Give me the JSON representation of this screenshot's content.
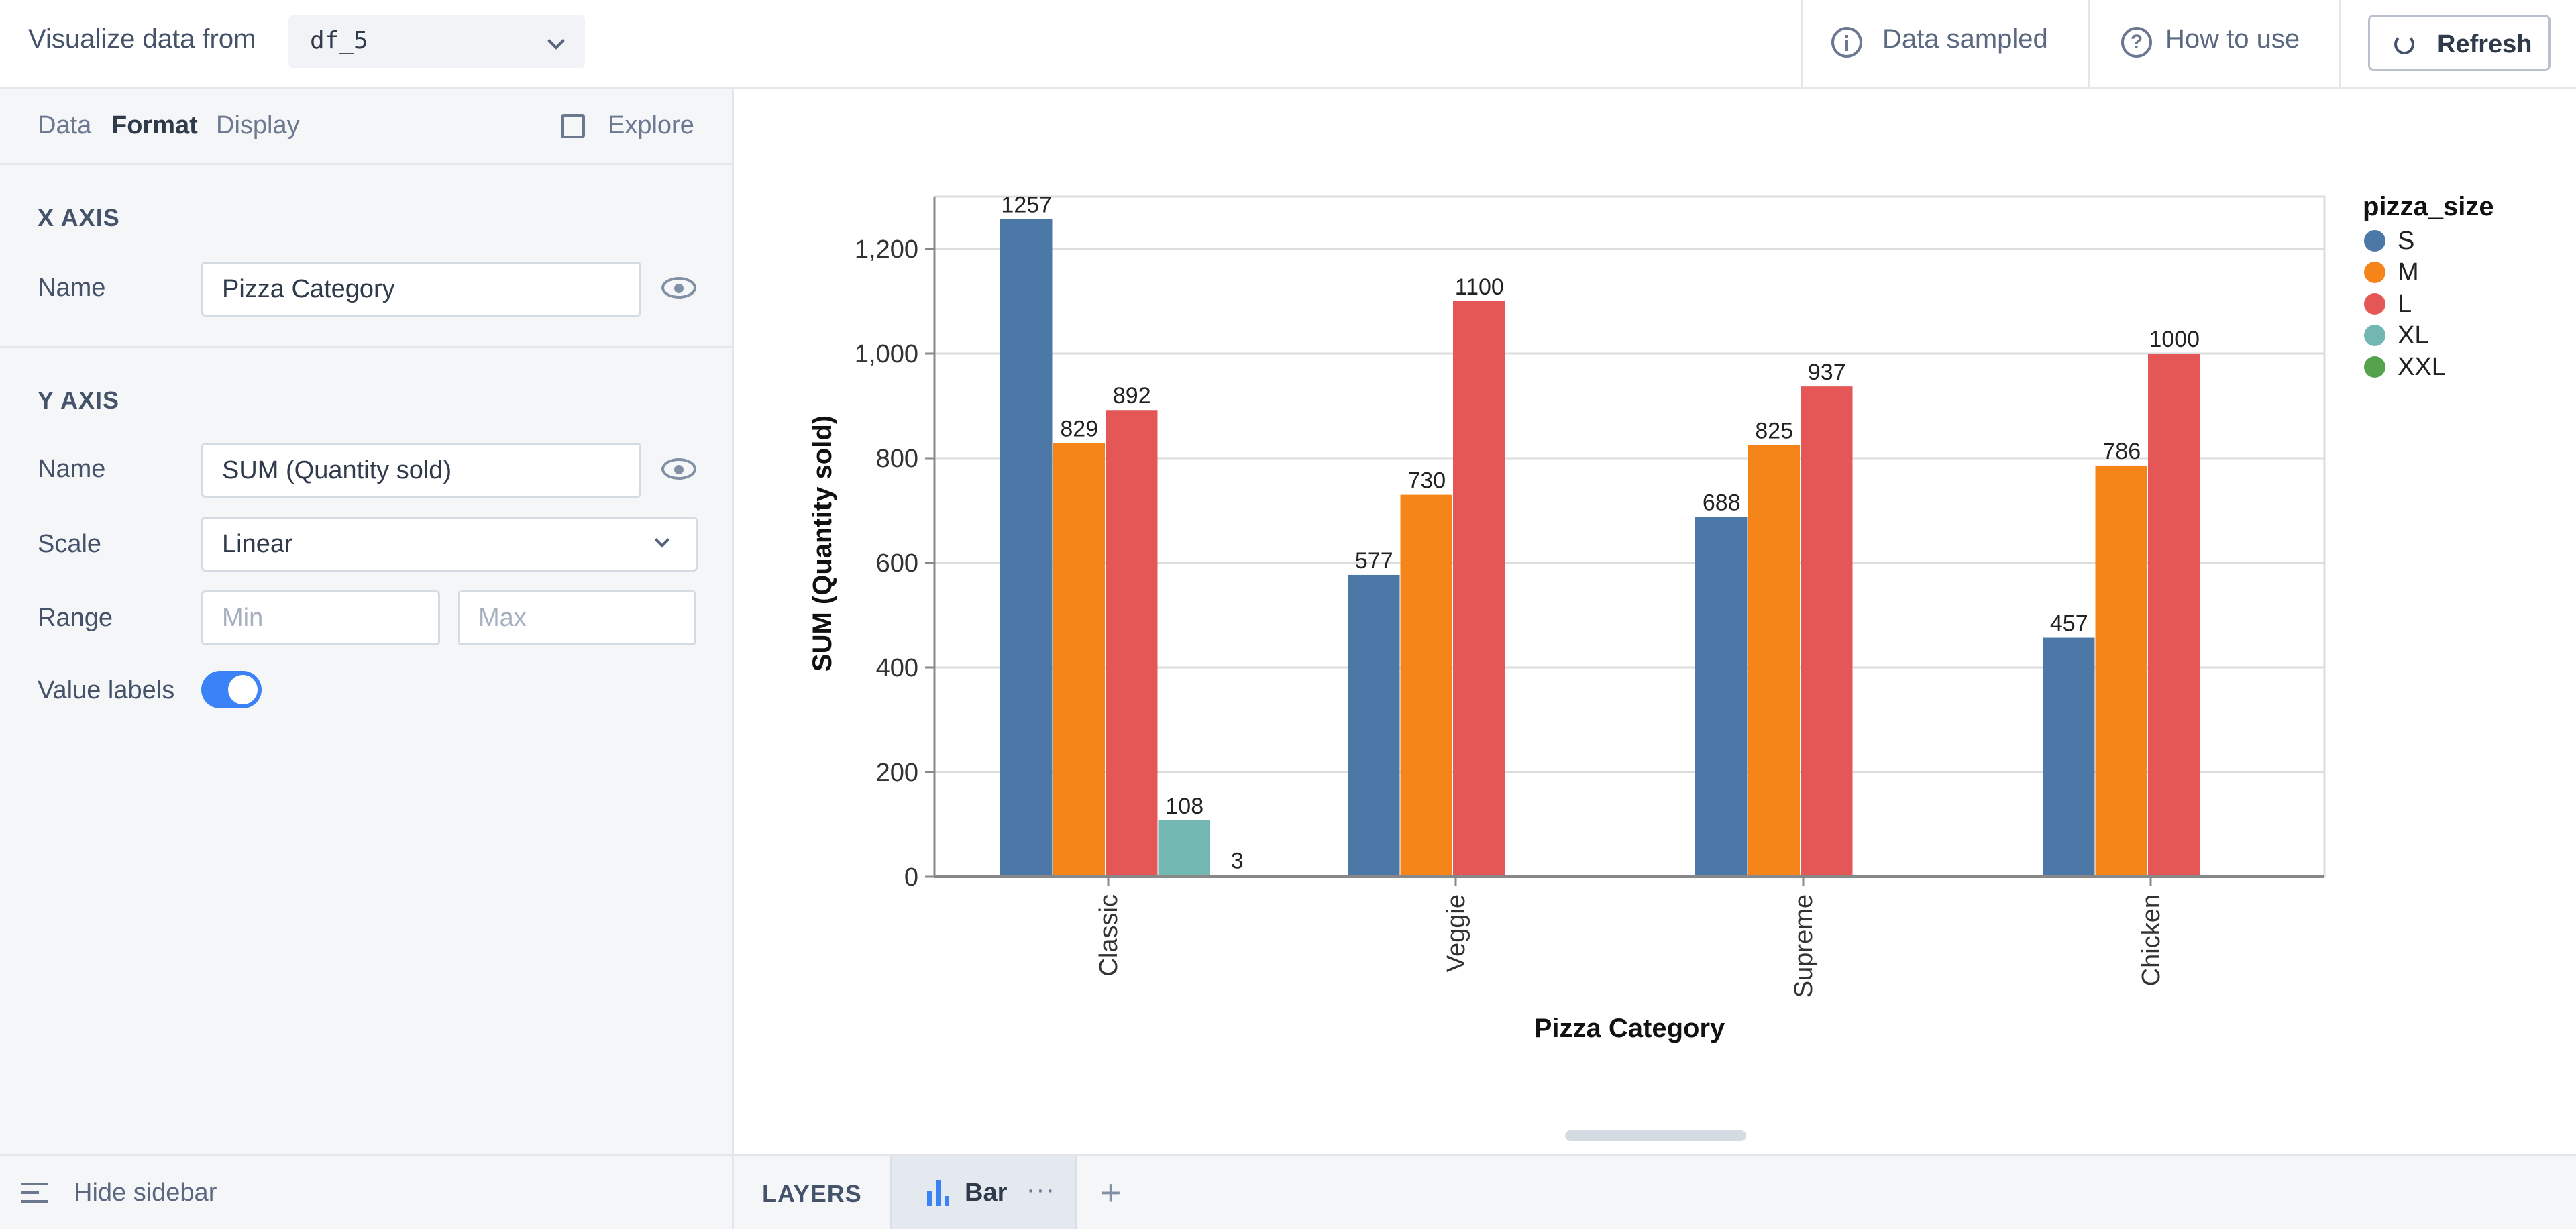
{
  "header": {
    "visualize_label": "Visualize data from",
    "dataframe": "df_5",
    "data_sampled": "Data sampled",
    "how_to_use": "How to use",
    "refresh_label": "Refresh"
  },
  "sidebar": {
    "tabs": [
      "Data",
      "Format",
      "Display"
    ],
    "active_tab": "Format",
    "explore_label": "Explore",
    "x_axis": {
      "section_title": "X AXIS",
      "name_label": "Name",
      "name_value": "Pizza Category"
    },
    "y_axis": {
      "section_title": "Y AXIS",
      "name_label": "Name",
      "name_value": "SUM (Quantity sold)",
      "scale_label": "Scale",
      "scale_value": "Linear",
      "range_label": "Range",
      "range_min_placeholder": "Min",
      "range_max_placeholder": "Max",
      "value_labels_label": "Value labels",
      "value_labels_on": true
    },
    "hide_sidebar_label": "Hide sidebar"
  },
  "layers": {
    "label": "LAYERS",
    "active_layer": "Bar",
    "more": "···",
    "add": "+"
  },
  "chart_data": {
    "type": "bar",
    "xlabel": "Pizza Category",
    "ylabel": "SUM (Quantity sold)",
    "ylim": [
      0,
      1300
    ],
    "yticks": [
      0,
      200,
      400,
      600,
      800,
      1000,
      1200
    ],
    "ytick_labels": [
      "0",
      "200",
      "400",
      "600",
      "800",
      "1,000",
      "1,200"
    ],
    "grid": true,
    "legend_title": "pizza_size",
    "legend_position": "right",
    "categories": [
      "Classic",
      "Veggie",
      "Supreme",
      "Chicken"
    ],
    "series": [
      {
        "name": "S",
        "color": "#4c78a8",
        "values": [
          1257,
          577,
          688,
          457
        ]
      },
      {
        "name": "M",
        "color": "#f58518",
        "values": [
          829,
          730,
          825,
          786
        ]
      },
      {
        "name": "L",
        "color": "#e45756",
        "values": [
          892,
          1100,
          937,
          1000
        ]
      },
      {
        "name": "XL",
        "color": "#72b7b2",
        "values": [
          108,
          null,
          null,
          null
        ]
      },
      {
        "name": "XXL",
        "color": "#54a24b",
        "values": [
          3,
          null,
          null,
          null
        ]
      }
    ]
  }
}
